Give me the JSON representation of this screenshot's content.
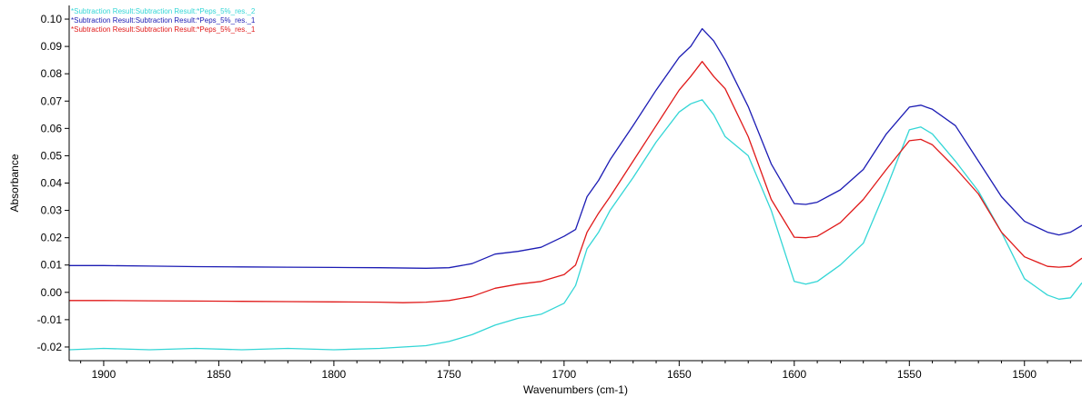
{
  "chart_data": {
    "type": "line",
    "title": "",
    "xlabel": "Wavenumbers (cm-1)",
    "ylabel": "Absorbance",
    "xlim": [
      1915,
      1475
    ],
    "ylim": [
      -0.025,
      0.105
    ],
    "x_reversed": true,
    "grid": false,
    "legend_position": "top-left",
    "x_ticks": [
      1900,
      1850,
      1800,
      1750,
      1700,
      1650,
      1600,
      1550,
      1500
    ],
    "x_tick_labels": [
      "1900",
      "1850",
      "1800",
      "1750",
      "1700",
      "1650",
      "1600",
      "1550",
      "1500"
    ],
    "y_ticks": [
      -0.02,
      -0.01,
      0.0,
      0.01,
      0.02,
      0.03,
      0.04,
      0.05,
      0.06,
      0.07,
      0.08,
      0.09,
      0.1
    ],
    "y_tick_labels": [
      "-0.02",
      "-0.01",
      "0.00",
      "0.01",
      "0.02",
      "0.03",
      "0.04",
      "0.05",
      "0.06",
      "0.07",
      "0.08",
      "0.09",
      "0.10"
    ],
    "series": [
      {
        "name": "*Subtraction Result:Subtraction Result:*Peps_5%_res._2",
        "color": "#33d6d6",
        "points": [
          [
            1915,
            -0.021
          ],
          [
            1900,
            -0.0205
          ],
          [
            1880,
            -0.021
          ],
          [
            1860,
            -0.0205
          ],
          [
            1840,
            -0.021
          ],
          [
            1820,
            -0.0205
          ],
          [
            1800,
            -0.021
          ],
          [
            1780,
            -0.0205
          ],
          [
            1760,
            -0.0195
          ],
          [
            1750,
            -0.018
          ],
          [
            1740,
            -0.0155
          ],
          [
            1730,
            -0.012
          ],
          [
            1720,
            -0.0095
          ],
          [
            1710,
            -0.008
          ],
          [
            1700,
            -0.004
          ],
          [
            1695,
            0.0025
          ],
          [
            1690,
            0.016
          ],
          [
            1685,
            0.022
          ],
          [
            1680,
            0.03
          ],
          [
            1670,
            0.042
          ],
          [
            1660,
            0.055
          ],
          [
            1650,
            0.066
          ],
          [
            1645,
            0.069
          ],
          [
            1640,
            0.0705
          ],
          [
            1635,
            0.065
          ],
          [
            1630,
            0.057
          ],
          [
            1620,
            0.05
          ],
          [
            1610,
            0.03
          ],
          [
            1600,
            0.004
          ],
          [
            1595,
            0.003
          ],
          [
            1590,
            0.004
          ],
          [
            1580,
            0.01
          ],
          [
            1570,
            0.018
          ],
          [
            1560,
            0.038
          ],
          [
            1550,
            0.0595
          ],
          [
            1545,
            0.0605
          ],
          [
            1540,
            0.058
          ],
          [
            1530,
            0.048
          ],
          [
            1520,
            0.037
          ],
          [
            1510,
            0.022
          ],
          [
            1500,
            0.005
          ],
          [
            1490,
            -0.001
          ],
          [
            1485,
            -0.0025
          ],
          [
            1480,
            -0.002
          ],
          [
            1475,
            0.0035
          ]
        ]
      },
      {
        "name": "*Subtraction Result:Subtraction Result:*Peps_5%_res._1",
        "color": "#1c1cb4",
        "points": [
          [
            1915,
            0.0098
          ],
          [
            1900,
            0.0098
          ],
          [
            1880,
            0.0096
          ],
          [
            1860,
            0.0094
          ],
          [
            1840,
            0.0093
          ],
          [
            1820,
            0.0092
          ],
          [
            1800,
            0.0091
          ],
          [
            1780,
            0.009
          ],
          [
            1760,
            0.0088
          ],
          [
            1750,
            0.009
          ],
          [
            1740,
            0.0105
          ],
          [
            1730,
            0.014
          ],
          [
            1720,
            0.015
          ],
          [
            1710,
            0.0165
          ],
          [
            1700,
            0.0205
          ],
          [
            1695,
            0.023
          ],
          [
            1690,
            0.035
          ],
          [
            1685,
            0.041
          ],
          [
            1680,
            0.0485
          ],
          [
            1670,
            0.061
          ],
          [
            1660,
            0.074
          ],
          [
            1650,
            0.086
          ],
          [
            1645,
            0.09
          ],
          [
            1640,
            0.0965
          ],
          [
            1635,
            0.092
          ],
          [
            1630,
            0.085
          ],
          [
            1620,
            0.068
          ],
          [
            1610,
            0.047
          ],
          [
            1600,
            0.0325
          ],
          [
            1595,
            0.0322
          ],
          [
            1590,
            0.033
          ],
          [
            1580,
            0.0375
          ],
          [
            1570,
            0.045
          ],
          [
            1560,
            0.058
          ],
          [
            1550,
            0.0678
          ],
          [
            1545,
            0.0685
          ],
          [
            1540,
            0.067
          ],
          [
            1530,
            0.061
          ],
          [
            1520,
            0.048
          ],
          [
            1510,
            0.035
          ],
          [
            1500,
            0.026
          ],
          [
            1490,
            0.022
          ],
          [
            1485,
            0.021
          ],
          [
            1480,
            0.022
          ],
          [
            1475,
            0.0245
          ]
        ]
      },
      {
        "name": "*Subtraction Result:Subtraction Result:*Peps_5%_res._1",
        "color": "#e01919",
        "points": [
          [
            1915,
            -0.003
          ],
          [
            1900,
            -0.003
          ],
          [
            1880,
            -0.0031
          ],
          [
            1860,
            -0.0032
          ],
          [
            1840,
            -0.0033
          ],
          [
            1820,
            -0.0034
          ],
          [
            1800,
            -0.0035
          ],
          [
            1780,
            -0.0036
          ],
          [
            1770,
            -0.0038
          ],
          [
            1760,
            -0.0036
          ],
          [
            1750,
            -0.003
          ],
          [
            1740,
            -0.0015
          ],
          [
            1730,
            0.0015
          ],
          [
            1720,
            0.003
          ],
          [
            1710,
            0.004
          ],
          [
            1700,
            0.0065
          ],
          [
            1695,
            0.01
          ],
          [
            1690,
            0.022
          ],
          [
            1685,
            0.029
          ],
          [
            1680,
            0.035
          ],
          [
            1670,
            0.048
          ],
          [
            1660,
            0.061
          ],
          [
            1650,
            0.074
          ],
          [
            1645,
            0.079
          ],
          [
            1640,
            0.0845
          ],
          [
            1635,
            0.079
          ],
          [
            1630,
            0.0745
          ],
          [
            1620,
            0.057
          ],
          [
            1610,
            0.034
          ],
          [
            1600,
            0.0202
          ],
          [
            1595,
            0.02
          ],
          [
            1590,
            0.0205
          ],
          [
            1580,
            0.0255
          ],
          [
            1570,
            0.034
          ],
          [
            1560,
            0.045
          ],
          [
            1550,
            0.0555
          ],
          [
            1545,
            0.056
          ],
          [
            1540,
            0.054
          ],
          [
            1530,
            0.0455
          ],
          [
            1520,
            0.036
          ],
          [
            1510,
            0.022
          ],
          [
            1500,
            0.013
          ],
          [
            1490,
            0.0095
          ],
          [
            1485,
            0.0092
          ],
          [
            1480,
            0.0095
          ],
          [
            1475,
            0.0125
          ]
        ]
      }
    ]
  }
}
